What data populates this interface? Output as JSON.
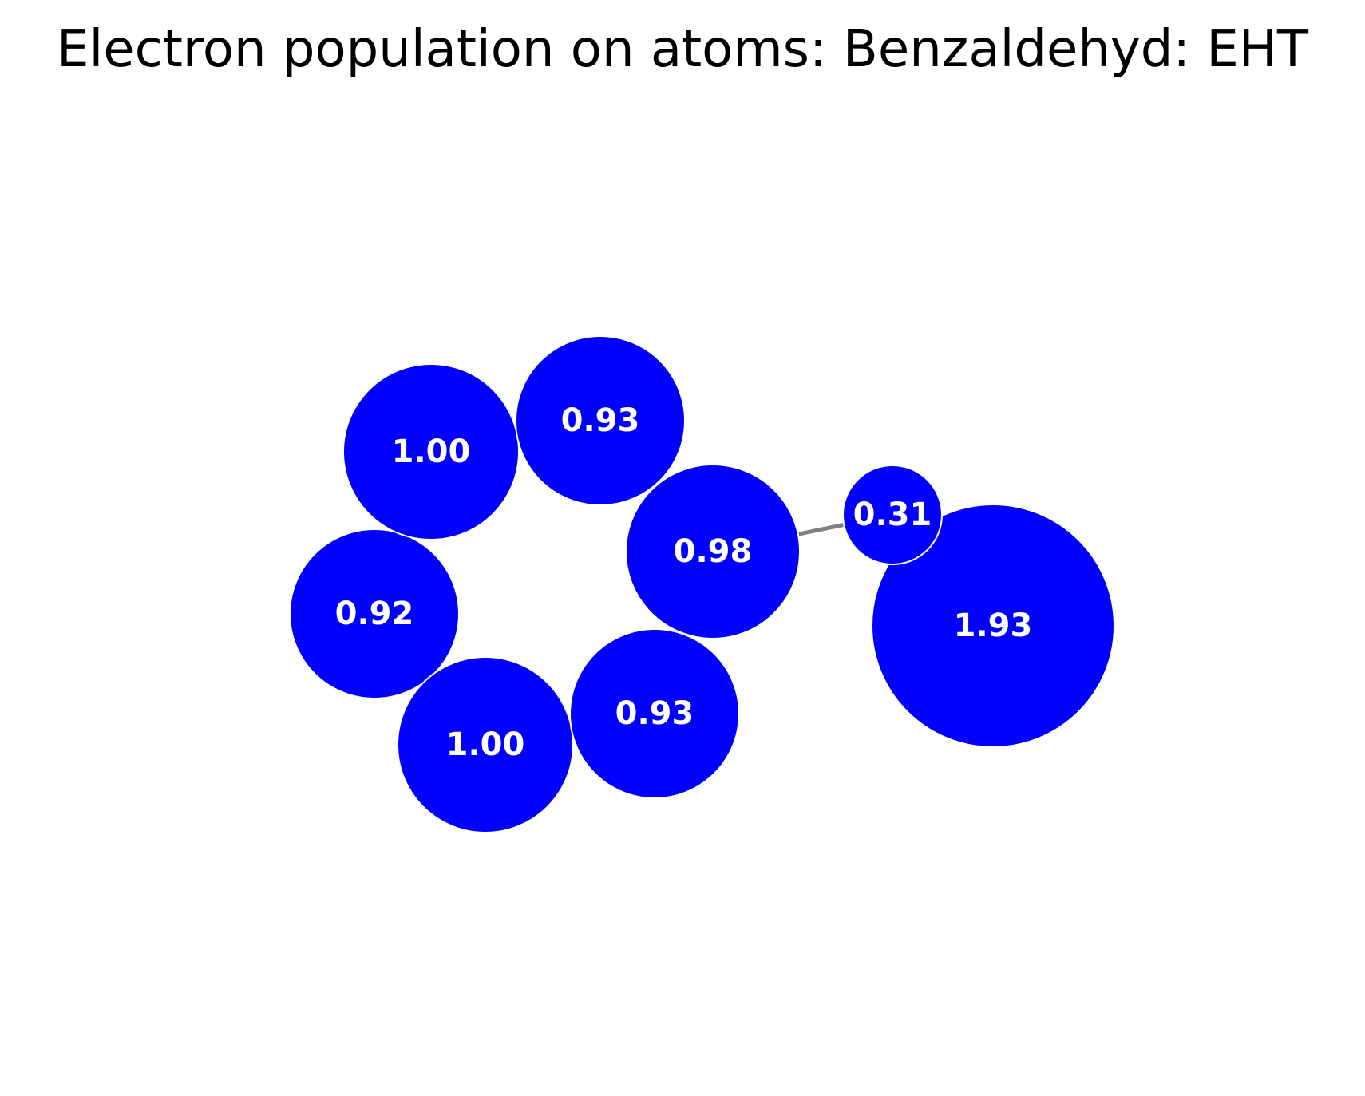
{
  "title": "Electron population on atoms: Benzaldehyd: EHT",
  "colors": {
    "atom_fill": "#0000ff",
    "atom_label": "#ffffff",
    "bond": "#808080",
    "background": "#ffffff"
  },
  "atoms": [
    {
      "id": "c1",
      "label": "1.00",
      "population": 1.0
    },
    {
      "id": "c2",
      "label": "0.93",
      "population": 0.93
    },
    {
      "id": "c3",
      "label": "0.98",
      "population": 0.98
    },
    {
      "id": "c4",
      "label": "0.93",
      "population": 0.93
    },
    {
      "id": "c5",
      "label": "1.00",
      "population": 1.0
    },
    {
      "id": "c6",
      "label": "0.92",
      "population": 0.92
    },
    {
      "id": "c7",
      "label": "0.31",
      "population": 0.31
    },
    {
      "id": "o1",
      "label": "1.93",
      "population": 1.93
    }
  ],
  "bonds": [
    {
      "from": "c3",
      "to": "c7"
    }
  ]
}
